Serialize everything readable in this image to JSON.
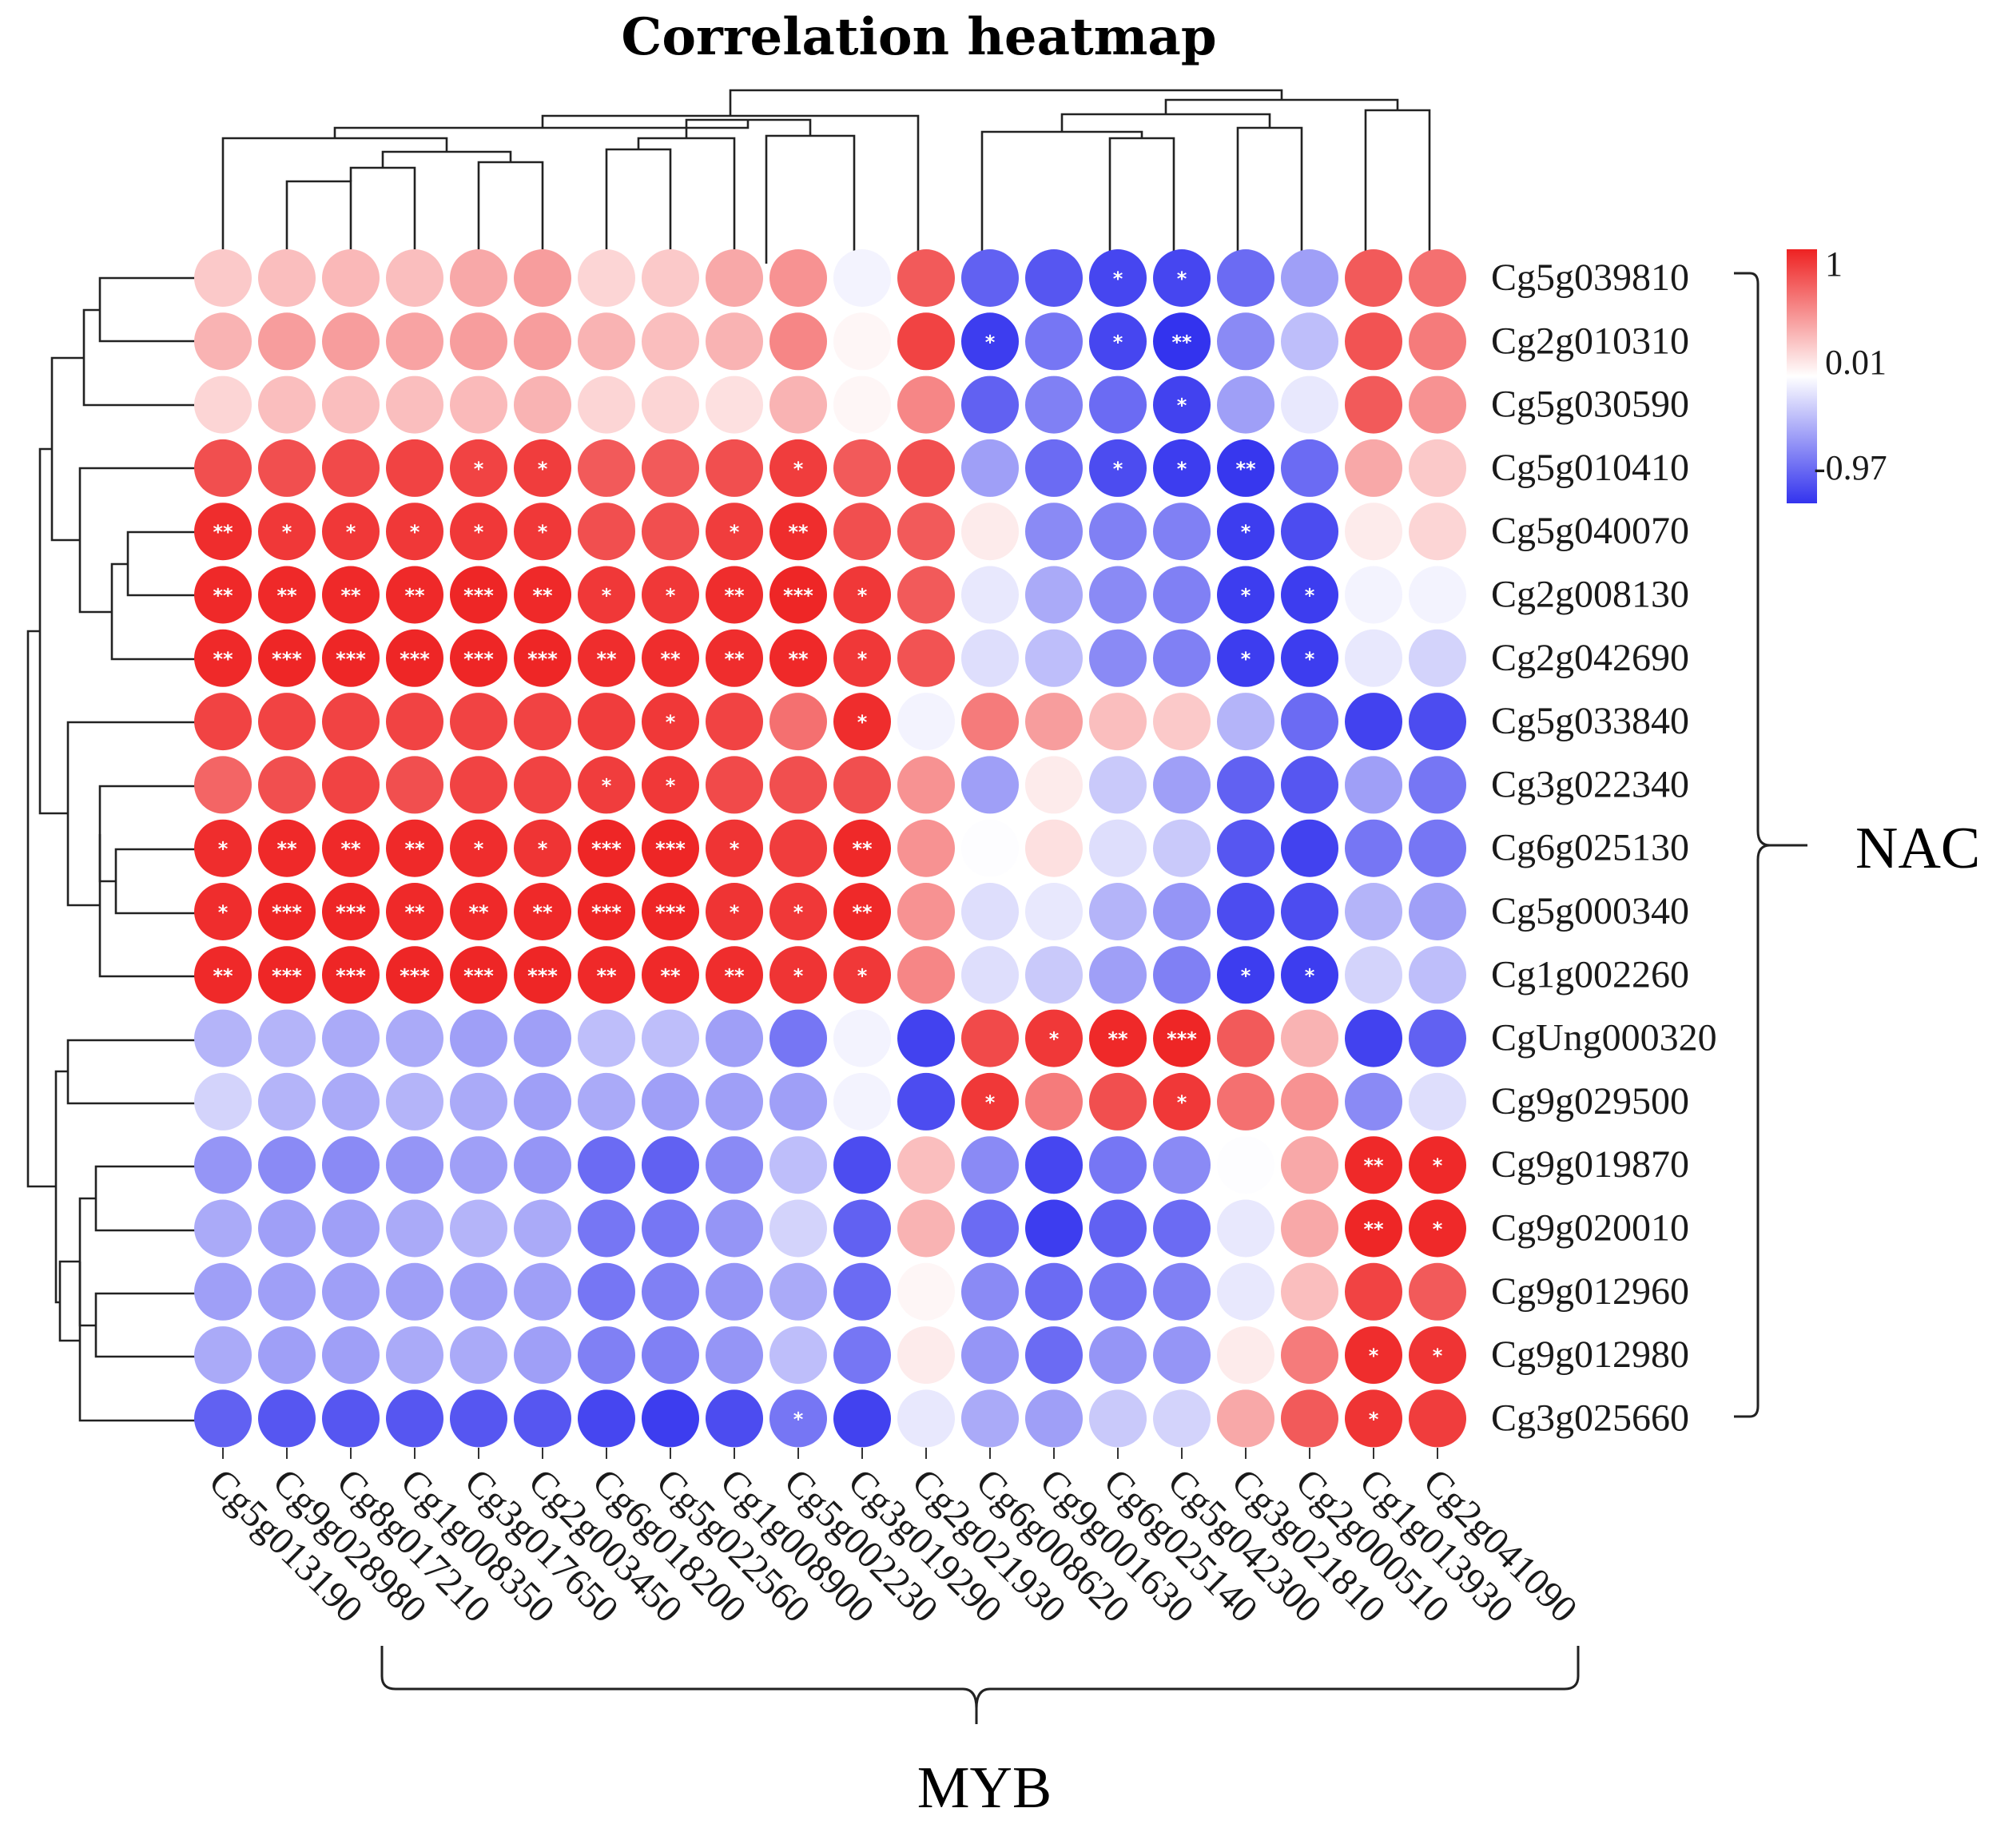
{
  "chart_data": {
    "type": "heatmap",
    "title": "Correlation heatmap",
    "rows": [
      "Cg5g039810",
      "Cg2g010310",
      "Cg5g030590",
      "Cg5g010410",
      "Cg5g040070",
      "Cg2g008130",
      "Cg2g042690",
      "Cg5g033840",
      "Cg3g022340",
      "Cg6g025130",
      "Cg5g000340",
      "Cg1g002260",
      "CgUng000320",
      "Cg9g029500",
      "Cg9g019870",
      "Cg9g020010",
      "Cg9g012960",
      "Cg9g012980",
      "Cg3g025660"
    ],
    "columns": [
      "Cg5g013190",
      "Cg9g028980",
      "Cg8g017210",
      "Cg1g008350",
      "Cg3g017650",
      "Cg2g003450",
      "Cg6g018200",
      "Cg5g022560",
      "Cg1g008900",
      "Cg5g002230",
      "Cg3g019290",
      "Cg2g021930",
      "Cg6g008620",
      "Cg9g001630",
      "Cg6g025140",
      "Cg5g042300",
      "Cg3g021810",
      "Cg2g000510",
      "Cg1g013930",
      "Cg2g041090"
    ],
    "row_group": "NAC",
    "column_group": "MYB",
    "legend": {
      "max": 1,
      "mid": 0.01,
      "min": -0.97,
      "max_label": "1",
      "mid_label": "0.01",
      "min_label": "-0.97",
      "colors": [
        "#3333ee",
        "#ffffff",
        "#ee2222"
      ]
    },
    "values": [
      [
        0.25,
        0.3,
        0.33,
        0.3,
        0.4,
        0.45,
        0.2,
        0.25,
        0.4,
        0.5,
        -0.05,
        0.75,
        -0.75,
        -0.8,
        -0.88,
        -0.88,
        -0.7,
        -0.45,
        0.75,
        0.65
      ],
      [
        0.35,
        0.45,
        0.45,
        0.42,
        0.45,
        0.45,
        0.35,
        0.3,
        0.35,
        0.55,
        0.05,
        0.85,
        -0.92,
        -0.65,
        -0.88,
        -0.97,
        -0.55,
        -0.3,
        0.78,
        0.6
      ],
      [
        0.2,
        0.3,
        0.3,
        0.3,
        0.32,
        0.35,
        0.2,
        0.2,
        0.15,
        0.35,
        0.05,
        0.55,
        -0.75,
        -0.6,
        -0.7,
        -0.9,
        -0.45,
        -0.1,
        0.75,
        0.5
      ],
      [
        0.8,
        0.8,
        0.82,
        0.85,
        0.85,
        0.88,
        0.75,
        0.75,
        0.8,
        0.88,
        0.75,
        0.8,
        -0.45,
        -0.7,
        -0.85,
        -0.92,
        -0.95,
        -0.7,
        0.4,
        0.25
      ],
      [
        0.95,
        0.9,
        0.9,
        0.9,
        0.9,
        0.9,
        0.8,
        0.8,
        0.88,
        0.95,
        0.8,
        0.75,
        0.1,
        -0.55,
        -0.6,
        -0.6,
        -0.92,
        -0.85,
        0.1,
        0.2
      ],
      [
        0.97,
        0.97,
        0.97,
        0.97,
        0.98,
        0.97,
        0.9,
        0.9,
        0.95,
        0.98,
        0.9,
        0.75,
        -0.1,
        -0.4,
        -0.55,
        -0.6,
        -0.92,
        -0.92,
        -0.05,
        -0.05
      ],
      [
        0.97,
        0.98,
        0.98,
        0.98,
        0.98,
        0.98,
        0.95,
        0.95,
        0.95,
        0.97,
        0.9,
        0.78,
        -0.15,
        -0.3,
        -0.55,
        -0.6,
        -0.92,
        -0.92,
        -0.1,
        -0.2
      ],
      [
        0.85,
        0.85,
        0.85,
        0.85,
        0.85,
        0.85,
        0.88,
        0.9,
        0.85,
        0.65,
        0.95,
        -0.05,
        0.6,
        0.45,
        0.3,
        0.25,
        -0.35,
        -0.7,
        -0.9,
        -0.85
      ],
      [
        0.7,
        0.8,
        0.85,
        0.8,
        0.85,
        0.85,
        0.88,
        0.9,
        0.82,
        0.8,
        0.8,
        0.5,
        -0.45,
        0.1,
        -0.25,
        -0.45,
        -0.75,
        -0.8,
        -0.45,
        -0.65
      ],
      [
        0.95,
        0.97,
        0.97,
        0.97,
        0.95,
        0.92,
        0.98,
        0.98,
        0.92,
        0.88,
        0.97,
        0.5,
        0.0,
        0.15,
        -0.15,
        -0.25,
        -0.8,
        -0.9,
        -0.65,
        -0.65
      ],
      [
        0.95,
        0.98,
        0.98,
        0.97,
        0.97,
        0.97,
        0.98,
        0.98,
        0.92,
        0.9,
        0.97,
        0.5,
        -0.15,
        -0.1,
        -0.35,
        -0.5,
        -0.85,
        -0.85,
        -0.35,
        -0.45
      ],
      [
        0.97,
        0.98,
        0.98,
        0.98,
        0.98,
        0.98,
        0.97,
        0.97,
        0.95,
        0.92,
        0.9,
        0.55,
        -0.15,
        -0.25,
        -0.45,
        -0.6,
        -0.92,
        -0.92,
        -0.2,
        -0.3
      ],
      [
        -0.35,
        -0.35,
        -0.4,
        -0.4,
        -0.45,
        -0.45,
        -0.3,
        -0.3,
        -0.45,
        -0.65,
        -0.05,
        -0.9,
        0.82,
        0.9,
        0.97,
        0.98,
        0.75,
        0.35,
        -0.9,
        -0.75
      ],
      [
        -0.2,
        -0.35,
        -0.4,
        -0.35,
        -0.4,
        -0.45,
        -0.4,
        -0.45,
        -0.45,
        -0.45,
        -0.05,
        -0.85,
        0.9,
        0.6,
        0.8,
        0.9,
        0.65,
        0.5,
        -0.55,
        -0.15
      ],
      [
        -0.5,
        -0.55,
        -0.55,
        -0.5,
        -0.45,
        -0.5,
        -0.7,
        -0.75,
        -0.55,
        -0.3,
        -0.85,
        0.3,
        -0.55,
        -0.88,
        -0.65,
        -0.55,
        0.0,
        0.4,
        0.97,
        0.97
      ],
      [
        -0.4,
        -0.45,
        -0.45,
        -0.4,
        -0.35,
        -0.4,
        -0.65,
        -0.65,
        -0.5,
        -0.2,
        -0.75,
        0.35,
        -0.7,
        -0.92,
        -0.75,
        -0.7,
        -0.1,
        0.4,
        0.98,
        0.97
      ],
      [
        -0.45,
        -0.45,
        -0.45,
        -0.45,
        -0.45,
        -0.45,
        -0.65,
        -0.6,
        -0.5,
        -0.4,
        -0.7,
        0.05,
        -0.55,
        -0.7,
        -0.65,
        -0.6,
        -0.1,
        0.3,
        0.85,
        0.75
      ],
      [
        -0.4,
        -0.45,
        -0.45,
        -0.4,
        -0.4,
        -0.45,
        -0.6,
        -0.6,
        -0.5,
        -0.3,
        -0.65,
        0.1,
        -0.5,
        -0.7,
        -0.5,
        -0.5,
        0.1,
        0.6,
        0.95,
        0.92
      ],
      [
        -0.75,
        -0.8,
        -0.8,
        -0.8,
        -0.8,
        -0.8,
        -0.88,
        -0.92,
        -0.85,
        -0.65,
        -0.9,
        -0.1,
        -0.4,
        -0.45,
        -0.25,
        -0.2,
        0.4,
        0.75,
        0.92,
        0.88
      ]
    ],
    "significance": [
      [
        "",
        "",
        "",
        "",
        "",
        "",
        "",
        "",
        "",
        "",
        "",
        "",
        "",
        "",
        "*",
        "*",
        "",
        "",
        "",
        ""
      ],
      [
        "",
        "",
        "",
        "",
        "",
        "",
        "",
        "",
        "",
        "",
        "",
        "",
        "*",
        "",
        "*",
        "**",
        "",
        "",
        "",
        ""
      ],
      [
        "",
        "",
        "",
        "",
        "",
        "",
        "",
        "",
        "",
        "",
        "",
        "",
        "",
        "",
        "",
        "*",
        "",
        "",
        "",
        ""
      ],
      [
        "",
        "",
        "",
        "",
        "*",
        "*",
        "",
        "",
        "",
        "*",
        "",
        "",
        "",
        "",
        "*",
        "*",
        "**",
        "",
        "",
        ""
      ],
      [
        "**",
        "*",
        "*",
        "*",
        "*",
        "*",
        "",
        "",
        "*",
        "**",
        "",
        "",
        "",
        "",
        "",
        "",
        "*",
        "",
        "",
        ""
      ],
      [
        "**",
        "**",
        "**",
        "**",
        "***",
        "**",
        "*",
        "*",
        "**",
        "***",
        "*",
        "",
        "",
        "",
        "",
        "",
        "*",
        "*",
        "",
        ""
      ],
      [
        "**",
        "***",
        "***",
        "***",
        "***",
        "***",
        "**",
        "**",
        "**",
        "**",
        "*",
        "",
        "",
        "",
        "",
        "",
        "*",
        "*",
        "",
        ""
      ],
      [
        "",
        "",
        "",
        "",
        "",
        "",
        "",
        "*",
        "",
        "",
        "*",
        "",
        "",
        "",
        "",
        "",
        "",
        "",
        "",
        ""
      ],
      [
        "",
        "",
        "",
        "",
        "",
        "",
        "*",
        "*",
        "",
        "",
        "",
        "",
        "",
        "",
        "",
        "",
        "",
        "",
        "",
        ""
      ],
      [
        "*",
        "**",
        "**",
        "**",
        "*",
        "*",
        "***",
        "***",
        "*",
        "",
        "**",
        "",
        "",
        "",
        "",
        "",
        "",
        "",
        "",
        ""
      ],
      [
        "*",
        "***",
        "***",
        "**",
        "**",
        "**",
        "***",
        "***",
        "*",
        "*",
        "**",
        "",
        "",
        "",
        "",
        "",
        "",
        "",
        "",
        ""
      ],
      [
        "**",
        "***",
        "***",
        "***",
        "***",
        "***",
        "**",
        "**",
        "**",
        "*",
        "*",
        "",
        "",
        "",
        "",
        "",
        "*",
        "*",
        "",
        ""
      ],
      [
        "",
        "",
        "",
        "",
        "",
        "",
        "",
        "",
        "",
        "",
        "",
        "",
        "",
        "*",
        "**",
        "***",
        "",
        "",
        "",
        ""
      ],
      [
        "",
        "",
        "",
        "",
        "",
        "",
        "",
        "",
        "",
        "",
        "",
        "",
        "*",
        "",
        "",
        "*",
        "",
        "",
        "",
        ""
      ],
      [
        "",
        "",
        "",
        "",
        "",
        "",
        "",
        "",
        "",
        "",
        "",
        "",
        "",
        "",
        "",
        "",
        "",
        "",
        "**",
        "*"
      ],
      [
        "",
        "",
        "",
        "",
        "",
        "",
        "",
        "",
        "",
        "",
        "",
        "",
        "",
        "",
        "",
        "",
        "",
        "",
        "**",
        "*"
      ],
      [
        "",
        "",
        "",
        "",
        "",
        "",
        "",
        "",
        "",
        "",
        "",
        "",
        "",
        "",
        "",
        "",
        "",
        "",
        "",
        ""
      ],
      [
        "",
        "",
        "",
        "",
        "",
        "",
        "",
        "",
        "",
        "",
        "",
        "",
        "",
        "",
        "",
        "",
        "",
        "",
        "*",
        "*"
      ],
      [
        "",
        "",
        "",
        "",
        "",
        "",
        "",
        "",
        "",
        "*",
        "",
        "",
        "",
        "",
        "",
        "",
        "",
        "",
        "*",
        ""
      ]
    ]
  }
}
